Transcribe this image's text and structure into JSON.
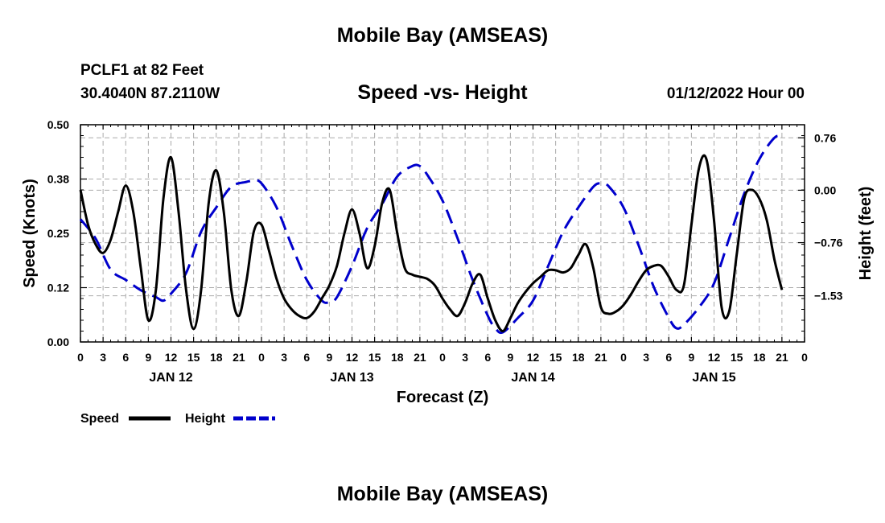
{
  "header": {
    "title": "Mobile Bay (AMSEAS)",
    "station": "PCLF1 at 82 Feet",
    "coordinates": "30.4040N  87.2110W",
    "run_time": "01/12/2022 Hour 00"
  },
  "footer": {
    "title": "Mobile Bay (AMSEAS)"
  },
  "chart_data": {
    "type": "line",
    "title": "Speed -vs- Height",
    "xlabel": "Forecast (Z)",
    "ylabel_left": "Speed (Knots)",
    "ylabel_right": "Height (feet)",
    "x_range_hours": [
      0,
      96
    ],
    "x_ticks": {
      "hours": [
        0,
        3,
        6,
        9,
        12,
        15,
        18,
        21,
        24,
        27,
        30,
        33,
        36,
        39,
        42,
        45,
        48,
        51,
        54,
        57,
        60,
        63,
        66,
        69,
        72,
        75,
        78,
        81,
        84,
        87,
        90,
        93,
        96
      ],
      "labels": [
        "0",
        "3",
        "6",
        "9",
        "12",
        "15",
        "18",
        "21",
        "0",
        "3",
        "6",
        "9",
        "12",
        "15",
        "18",
        "21",
        "0",
        "3",
        "6",
        "9",
        "12",
        "15",
        "18",
        "21",
        "0",
        "3",
        "6",
        "9",
        "12",
        "15",
        "18",
        "21",
        "0"
      ]
    },
    "date_labels": [
      {
        "hour": 12,
        "label": "JAN 12"
      },
      {
        "hour": 36,
        "label": "JAN 13"
      },
      {
        "hour": 60,
        "label": "JAN 14"
      },
      {
        "hour": 84,
        "label": "JAN 15"
      }
    ],
    "left_axis": {
      "range": [
        0.0,
        0.5
      ],
      "tick_values": [
        0.0,
        0.125,
        0.25,
        0.375,
        0.5
      ],
      "tick_labels": [
        "0.00",
        "0.12",
        "0.25",
        "0.38",
        "0.50"
      ]
    },
    "right_axis": {
      "range": [
        -2.2,
        0.95
      ],
      "tick_values": [
        -1.53,
        -0.76,
        0.0,
        0.76
      ],
      "tick_labels": [
        "−1.53",
        "−0.76",
        "0.00",
        "0.76"
      ]
    },
    "grid": true,
    "legend": {
      "placement": "bottom-left"
    },
    "series": [
      {
        "name": "Speed",
        "axis": "left",
        "color": "#000000",
        "dash": "solid",
        "points": [
          [
            0,
            0.35
          ],
          [
            1,
            0.27
          ],
          [
            2,
            0.225
          ],
          [
            3,
            0.205
          ],
          [
            4,
            0.235
          ],
          [
            5,
            0.3
          ],
          [
            6,
            0.36
          ],
          [
            7,
            0.3
          ],
          [
            8,
            0.17
          ],
          [
            9,
            0.05
          ],
          [
            10,
            0.12
          ],
          [
            11,
            0.33
          ],
          [
            12,
            0.425
          ],
          [
            13,
            0.3
          ],
          [
            14,
            0.12
          ],
          [
            15,
            0.03
          ],
          [
            16,
            0.12
          ],
          [
            17,
            0.32
          ],
          [
            18,
            0.395
          ],
          [
            19,
            0.3
          ],
          [
            20,
            0.12
          ],
          [
            21,
            0.06
          ],
          [
            22,
            0.14
          ],
          [
            23,
            0.255
          ],
          [
            24,
            0.27
          ],
          [
            25,
            0.21
          ],
          [
            26,
            0.145
          ],
          [
            27,
            0.1
          ],
          [
            28,
            0.075
          ],
          [
            29,
            0.06
          ],
          [
            30,
            0.055
          ],
          [
            31,
            0.07
          ],
          [
            32,
            0.1
          ],
          [
            33,
            0.13
          ],
          [
            34,
            0.175
          ],
          [
            35,
            0.25
          ],
          [
            36,
            0.305
          ],
          [
            37,
            0.25
          ],
          [
            38,
            0.17
          ],
          [
            39,
            0.22
          ],
          [
            40,
            0.32
          ],
          [
            41,
            0.35
          ],
          [
            42,
            0.25
          ],
          [
            43,
            0.17
          ],
          [
            44,
            0.155
          ],
          [
            45,
            0.15
          ],
          [
            46,
            0.145
          ],
          [
            47,
            0.13
          ],
          [
            48,
            0.1
          ],
          [
            49,
            0.075
          ],
          [
            50,
            0.06
          ],
          [
            51,
            0.09
          ],
          [
            52,
            0.135
          ],
          [
            53,
            0.155
          ],
          [
            54,
            0.1
          ],
          [
            55,
            0.05
          ],
          [
            56,
            0.025
          ],
          [
            57,
            0.055
          ],
          [
            58,
            0.09
          ],
          [
            59,
            0.115
          ],
          [
            60,
            0.135
          ],
          [
            61,
            0.15
          ],
          [
            62,
            0.165
          ],
          [
            63,
            0.165
          ],
          [
            64,
            0.16
          ],
          [
            65,
            0.17
          ],
          [
            66,
            0.2
          ],
          [
            67,
            0.225
          ],
          [
            68,
            0.17
          ],
          [
            69,
            0.08
          ],
          [
            70,
            0.065
          ],
          [
            71,
            0.07
          ],
          [
            72,
            0.085
          ],
          [
            73,
            0.11
          ],
          [
            74,
            0.14
          ],
          [
            75,
            0.165
          ],
          [
            76,
            0.175
          ],
          [
            77,
            0.175
          ],
          [
            78,
            0.15
          ],
          [
            79,
            0.12
          ],
          [
            80,
            0.13
          ],
          [
            81,
            0.27
          ],
          [
            82,
            0.4
          ],
          [
            83,
            0.42
          ],
          [
            84,
            0.28
          ],
          [
            85,
            0.08
          ],
          [
            86,
            0.07
          ],
          [
            87,
            0.2
          ],
          [
            88,
            0.33
          ],
          [
            89,
            0.35
          ],
          [
            90,
            0.33
          ],
          [
            91,
            0.28
          ],
          [
            92,
            0.19
          ],
          [
            93,
            0.12
          ]
        ]
      },
      {
        "name": "Height",
        "axis": "right",
        "color": "#0000cc",
        "dash": "dashed",
        "points": [
          [
            0,
            -0.42
          ],
          [
            2,
            -0.7
          ],
          [
            4,
            -1.15
          ],
          [
            6,
            -1.3
          ],
          [
            8,
            -1.45
          ],
          [
            10,
            -1.55
          ],
          [
            11,
            -1.6
          ],
          [
            12,
            -1.5
          ],
          [
            14,
            -1.2
          ],
          [
            16,
            -0.6
          ],
          [
            18,
            -0.25
          ],
          [
            20,
            0.05
          ],
          [
            22,
            0.12
          ],
          [
            23,
            0.14
          ],
          [
            24,
            0.1
          ],
          [
            26,
            -0.25
          ],
          [
            28,
            -0.8
          ],
          [
            30,
            -1.3
          ],
          [
            32,
            -1.6
          ],
          [
            33,
            -1.62
          ],
          [
            34,
            -1.55
          ],
          [
            36,
            -1.1
          ],
          [
            38,
            -0.55
          ],
          [
            40,
            -0.2
          ],
          [
            42,
            0.2
          ],
          [
            44,
            0.35
          ],
          [
            45,
            0.35
          ],
          [
            46,
            0.22
          ],
          [
            48,
            -0.15
          ],
          [
            50,
            -0.7
          ],
          [
            52,
            -1.3
          ],
          [
            54,
            -1.82
          ],
          [
            55,
            -2.0
          ],
          [
            56,
            -2.06
          ],
          [
            58,
            -1.85
          ],
          [
            60,
            -1.6
          ],
          [
            62,
            -1.1
          ],
          [
            64,
            -0.6
          ],
          [
            66,
            -0.25
          ],
          [
            68,
            0.05
          ],
          [
            69,
            0.1
          ],
          [
            70,
            0.06
          ],
          [
            72,
            -0.25
          ],
          [
            74,
            -0.8
          ],
          [
            76,
            -1.4
          ],
          [
            78,
            -1.85
          ],
          [
            79,
            -2.0
          ],
          [
            80,
            -1.95
          ],
          [
            82,
            -1.7
          ],
          [
            84,
            -1.35
          ],
          [
            86,
            -0.7
          ],
          [
            88,
            -0.05
          ],
          [
            90,
            0.45
          ],
          [
            92,
            0.76
          ],
          [
            93,
            0.78
          ]
        ]
      }
    ]
  }
}
